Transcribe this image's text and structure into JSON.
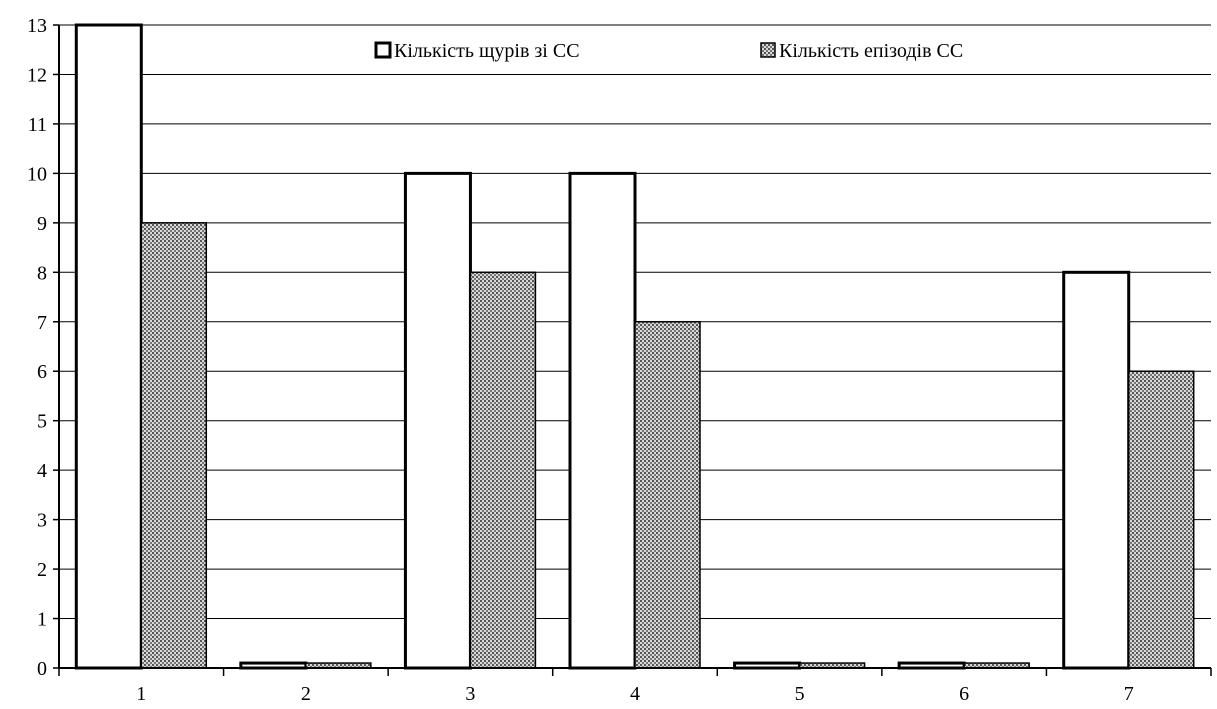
{
  "chart_data": {
    "type": "bar",
    "categories": [
      "1",
      "2",
      "3",
      "4",
      "5",
      "6",
      "7"
    ],
    "series": [
      {
        "name": "Кількість щурів зі СС",
        "values": [
          13,
          0.1,
          10,
          10,
          0.1,
          0.1,
          8
        ],
        "color": "#ffffff"
      },
      {
        "name": "Кількість епізодів СС",
        "values": [
          9,
          0.1,
          8,
          7,
          0.1,
          0.1,
          6
        ],
        "color": "#9a9a9a"
      }
    ],
    "yticks": [
      "0",
      "1",
      "2",
      "3",
      "4",
      "5",
      "6",
      "7",
      "8",
      "9",
      "10",
      "11",
      "12",
      "13"
    ],
    "ylim": [
      0,
      13
    ],
    "grid": true,
    "legend_position": "top-right",
    "title": "",
    "xlabel": "",
    "ylabel": ""
  }
}
